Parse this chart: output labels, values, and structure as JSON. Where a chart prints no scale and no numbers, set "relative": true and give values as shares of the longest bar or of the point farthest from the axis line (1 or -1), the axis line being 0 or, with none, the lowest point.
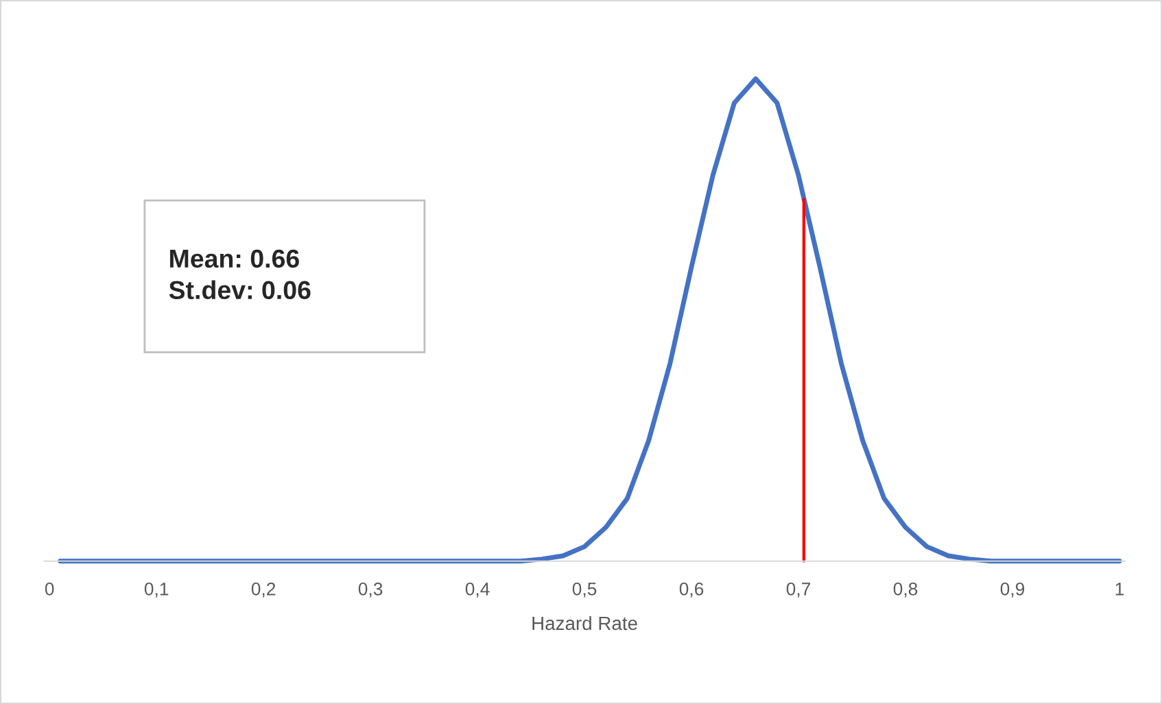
{
  "chart_data": {
    "type": "line",
    "relative": true,
    "xlabel": "Hazard Rate",
    "xlim": [
      -0.005,
      1.005
    ],
    "xticks": [
      0,
      {
        "value": 0.1,
        "label": "0,1"
      },
      {
        "value": 0.2,
        "label": "0,2"
      },
      {
        "value": 0.3,
        "label": "0,3"
      },
      {
        "value": 0.4,
        "label": "0,4"
      },
      {
        "value": 0.5,
        "label": "0,5"
      },
      {
        "value": 0.6,
        "label": "0,6"
      },
      {
        "value": 0.7,
        "label": "0,7"
      },
      {
        "value": 0.8,
        "label": "0,8"
      },
      {
        "value": 0.9,
        "label": "0,9"
      },
      1
    ],
    "tick_labels": "x",
    "grid": false,
    "legend": false,
    "marker": "none",
    "annotations": [
      "Mean: 0.66",
      "St.dev: 0.06"
    ],
    "series": [
      {
        "color": "#4472c4",
        "x": [
          0.01,
          0.1,
          0.2,
          0.3,
          0.4,
          0.44,
          0.46,
          0.48,
          0.5,
          0.52,
          0.54,
          0.56,
          0.58,
          0.6,
          0.62,
          0.64,
          0.66,
          0.68,
          0.7,
          0.72,
          0.74,
          0.76,
          0.78,
          0.8,
          0.82,
          0.84,
          0.86,
          0.88,
          0.9,
          1.0
        ],
        "values": [
          0,
          0,
          0,
          0,
          0,
          0,
          0.004,
          0.011,
          0.03,
          0.07,
          0.13,
          0.25,
          0.41,
          0.61,
          0.8,
          0.95,
          1,
          0.95,
          0.8,
          0.61,
          0.41,
          0.25,
          0.13,
          0.07,
          0.03,
          0.011,
          0.004,
          0,
          0,
          0
        ]
      },
      {
        "color": "#ff0000",
        "type": "line",
        "x": [
          0.705,
          0.705
        ],
        "values": [
          0,
          0.75
        ]
      }
    ]
  }
}
